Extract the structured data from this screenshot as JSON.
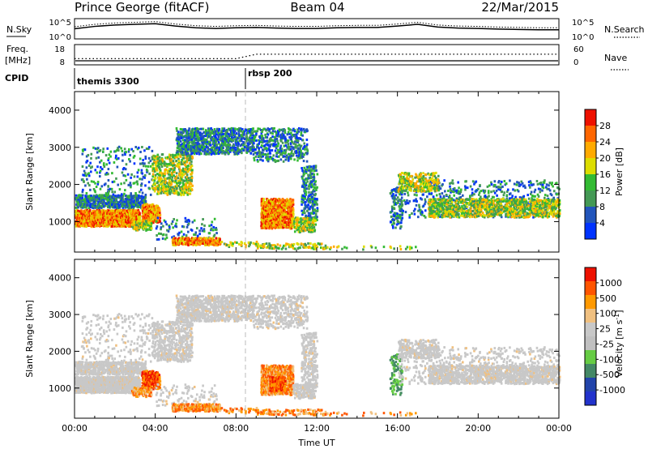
{
  "header": {
    "station": "Prince George (fitACF)",
    "beam": "Beam 04",
    "date": "22/Mar/2015"
  },
  "colors": {
    "power_scale": [
      "#0033ff",
      "#2255bb",
      "#449955",
      "#33bb33",
      "#dddd00",
      "#ffaa00",
      "#ff6600",
      "#ee1100"
    ],
    "velocity_scale": [
      "#ee1100",
      "#ff5500",
      "#ff9900",
      "#f0c080",
      "#c8c8c8",
      "#c0c0c0",
      "#66cc44",
      "#448866",
      "#2244aa",
      "#2233cc"
    ],
    "ground_scatter": "#c8c8c8"
  },
  "chart_data": [
    {
      "type": "line",
      "name": "noise-panel",
      "left_label": "N.Sky",
      "right_label": "N.Search",
      "left_ticks": [
        "10^5",
        "10^0"
      ],
      "right_ticks": [
        "10^5",
        "10^0"
      ],
      "x": [
        0,
        1,
        2,
        3,
        4,
        5,
        6,
        7,
        8,
        9,
        10,
        11,
        12,
        13,
        14,
        15,
        16,
        17,
        18,
        19,
        20,
        21,
        22,
        23,
        24
      ],
      "series": [
        {
          "values": [
            2.5,
            3.2,
            3.6,
            3.8,
            4.0,
            3.3,
            2.8,
            2.6,
            2.8,
            2.9,
            2.7,
            2.6,
            2.6,
            2.8,
            2.9,
            2.9,
            3.3,
            3.8,
            3.0,
            2.7,
            2.6,
            2.4,
            2.3,
            2.2,
            2.2
          ]
        }
      ]
    },
    {
      "type": "line",
      "name": "frequency-panel",
      "left_label": "Freq.",
      "left_unit": "[MHz]",
      "right_label": "Nave",
      "left_ticks": [
        "18",
        "8"
      ],
      "right_ticks": [
        "60",
        "0"
      ],
      "x": [
        0,
        1,
        2,
        3,
        4,
        5,
        6,
        7,
        8,
        9,
        10,
        11,
        12,
        13,
        14,
        15,
        16,
        17,
        18,
        19,
        20,
        21,
        22,
        23,
        24
      ],
      "series": [
        {
          "values": [
            11,
            11,
            11,
            11,
            11,
            11,
            11,
            11,
            11,
            13.5,
            13.5,
            13.5,
            13.5,
            13.5,
            13.5,
            13.5,
            13.5,
            13.5,
            13.5,
            13.5,
            13.5,
            13.5,
            13.5,
            13.5,
            13.5
          ]
        }
      ]
    },
    {
      "type": "table",
      "name": "cpid-panel",
      "label": "CPID",
      "segments": [
        {
          "start": 0,
          "label": "themis 3300"
        },
        {
          "start": 8.5,
          "label": "rbsp 200"
        }
      ]
    },
    {
      "type": "heatmap",
      "name": "power-panel",
      "ylabel": "Slant Range [km]",
      "xlim": [
        0,
        24
      ],
      "ylim": [
        180,
        4500
      ],
      "yticks": [
        1000,
        2000,
        3000,
        4000
      ],
      "colorbar": {
        "label": "Power [dB]",
        "ticks": [
          "28",
          "24",
          "20",
          "16",
          "12",
          "8",
          "4"
        ]
      }
    },
    {
      "type": "heatmap",
      "name": "velocity-panel",
      "ylabel": "Slant Range [km]",
      "xlabel": "Time UT",
      "xlim": [
        0,
        24
      ],
      "ylim": [
        180,
        4500
      ],
      "yticks": [
        1000,
        2000,
        3000,
        4000
      ],
      "xticks": [
        "00:00",
        "04:00",
        "08:00",
        "12:00",
        "16:00",
        "20:00",
        "00:00"
      ],
      "colorbar": {
        "label": "Velocity [m s",
        "label_sup": "-1",
        "label_end": "]",
        "ticks": [
          "1000",
          "500",
          "100",
          "25",
          "-25",
          "-100",
          "-500",
          "-1000"
        ]
      }
    }
  ]
}
